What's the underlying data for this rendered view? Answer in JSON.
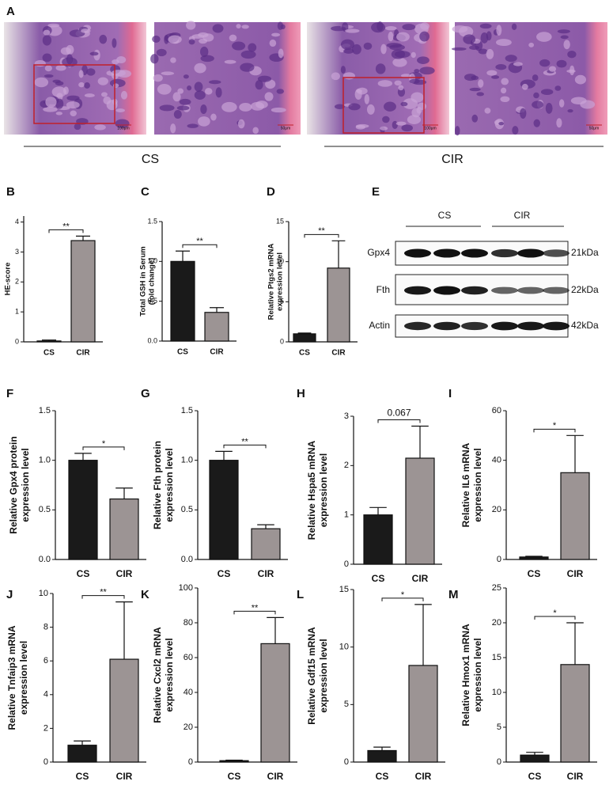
{
  "panel_a": {
    "label": "A",
    "groups": [
      "CS",
      "CIR"
    ],
    "scale_bars": [
      "100μm",
      "50μm",
      "100μm",
      "50μm"
    ]
  },
  "panel_e": {
    "label": "E",
    "groups": [
      "CS",
      "CIR"
    ],
    "proteins": [
      "Gpx4",
      "Fth",
      "Actin"
    ],
    "sizes": [
      "21kDa",
      "22kDa",
      "42kDa"
    ]
  },
  "chart_data": [
    {
      "type": "bar",
      "label": "B",
      "ylabel": [
        "HE-score"
      ],
      "categories": [
        "CS",
        "CIR"
      ],
      "values": [
        0.03,
        3.38
      ],
      "errors": [
        0.03,
        0.15
      ],
      "colors": [
        "#1a1a1a",
        "#9c9494"
      ],
      "ylim": [
        0,
        4.2
      ],
      "yticks": [
        0,
        1,
        2,
        3,
        4
      ],
      "sig": "**"
    },
    {
      "type": "bar",
      "label": "C",
      "ylabel": [
        "Total GSH in Serum",
        "(fold change)"
      ],
      "categories": [
        "CS",
        "CIR"
      ],
      "values": [
        1.0,
        0.36
      ],
      "errors": [
        0.13,
        0.06
      ],
      "colors": [
        "#1a1a1a",
        "#9c9494"
      ],
      "ylim": [
        0,
        1.5
      ],
      "yticks": [
        {
          "value": 0,
          "label": "0.0"
        },
        {
          "value": 0.5,
          "label": "0.5"
        },
        {
          "value": 1,
          "label": "1.0"
        },
        {
          "value": 1.5,
          "label": "1.5"
        }
      ],
      "sig": "**"
    },
    {
      "type": "bar",
      "label": "D",
      "ylabel": [
        "Relative Ptgs2 mRNA",
        "expression level"
      ],
      "categories": [
        "CS",
        "CIR"
      ],
      "values": [
        1.0,
        9.2
      ],
      "errors": [
        0.1,
        3.4
      ],
      "colors": [
        "#1a1a1a",
        "#9c9494"
      ],
      "ylim": [
        0,
        15
      ],
      "yticks": [
        0,
        5,
        10,
        15
      ],
      "sig": "**"
    },
    {
      "type": "bar",
      "label": "F",
      "ylabel": [
        "Relative Gpx4 protein",
        "expression level"
      ],
      "categories": [
        "CS",
        "CIR"
      ],
      "values": [
        1.0,
        0.61
      ],
      "errors": [
        0.07,
        0.11
      ],
      "colors": [
        "#1a1a1a",
        "#9c9494"
      ],
      "ylim": [
        0,
        1.5
      ],
      "yticks": [
        {
          "value": 0,
          "label": "0.0"
        },
        {
          "value": 0.5,
          "label": "0.5"
        },
        {
          "value": 1,
          "label": "1.0"
        },
        {
          "value": 1.5,
          "label": "1.5"
        }
      ],
      "sig": "*"
    },
    {
      "type": "bar",
      "label": "G",
      "ylabel": [
        "Relative Fth protein",
        "expression level"
      ],
      "categories": [
        "CS",
        "CIR"
      ],
      "values": [
        1.0,
        0.31
      ],
      "errors": [
        0.09,
        0.04
      ],
      "colors": [
        "#1a1a1a",
        "#9c9494"
      ],
      "ylim": [
        0,
        1.5
      ],
      "yticks": [
        {
          "value": 0,
          "label": "0.0"
        },
        {
          "value": 0.5,
          "label": "0.5"
        },
        {
          "value": 1,
          "label": "1.0"
        },
        {
          "value": 1.5,
          "label": "1.5"
        }
      ],
      "sig": "**"
    },
    {
      "type": "bar",
      "label": "H",
      "ylabel": [
        "Relative Hspa5 mRNA",
        "expression level"
      ],
      "categories": [
        "CS",
        "CIR"
      ],
      "values": [
        1.0,
        2.15
      ],
      "errors": [
        0.15,
        0.65
      ],
      "colors": [
        "#1a1a1a",
        "#9c9494"
      ],
      "ylim": [
        0,
        3
      ],
      "yticks": [
        0,
        1,
        2,
        3
      ],
      "sig": "0.067"
    },
    {
      "type": "bar",
      "label": "I",
      "ylabel": [
        "Relative IL6 mRNA",
        "expression level"
      ],
      "categories": [
        "CS",
        "CIR"
      ],
      "values": [
        1.0,
        35
      ],
      "errors": [
        0.3,
        15
      ],
      "colors": [
        "#1a1a1a",
        "#9c9494"
      ],
      "ylim": [
        0,
        60
      ],
      "yticks": [
        0,
        20,
        40,
        60
      ],
      "sig": "*"
    },
    {
      "type": "bar",
      "label": "J",
      "ylabel": [
        "Relative Tnfaip3 mRNA",
        "expression level"
      ],
      "categories": [
        "CS",
        "CIR"
      ],
      "values": [
        1.0,
        6.1
      ],
      "errors": [
        0.25,
        3.4
      ],
      "colors": [
        "#1a1a1a",
        "#9c9494"
      ],
      "ylim": [
        0,
        10
      ],
      "yticks": [
        0,
        2,
        4,
        6,
        8,
        10
      ],
      "sig": "**"
    },
    {
      "type": "bar",
      "label": "K",
      "ylabel": [
        "Relative Cxcl2 mRNA",
        "expression level"
      ],
      "categories": [
        "CS",
        "CIR"
      ],
      "values": [
        0.8,
        68
      ],
      "errors": [
        0.3,
        15
      ],
      "colors": [
        "#1a1a1a",
        "#9c9494"
      ],
      "ylim": [
        0,
        100
      ],
      "yticks": [
        0,
        20,
        40,
        60,
        80,
        100
      ],
      "sig": "**"
    },
    {
      "type": "bar",
      "label": "L",
      "ylabel": [
        "Relative Gdf15 mRNA",
        "expression level"
      ],
      "categories": [
        "CS",
        "CIR"
      ],
      "values": [
        1.0,
        8.4
      ],
      "errors": [
        0.3,
        5.3
      ],
      "colors": [
        "#1a1a1a",
        "#9c9494"
      ],
      "ylim": [
        0,
        15
      ],
      "yticks": [
        0,
        5,
        10,
        15
      ],
      "sig": "*"
    },
    {
      "type": "bar",
      "label": "M",
      "ylabel": [
        "Relative Hmox1 mRNA",
        "expression level"
      ],
      "categories": [
        "CS",
        "CIR"
      ],
      "values": [
        1.0,
        14
      ],
      "errors": [
        0.4,
        6
      ],
      "colors": [
        "#1a1a1a",
        "#9c9494"
      ],
      "ylim": [
        0,
        25
      ],
      "yticks": [
        0,
        5,
        10,
        15,
        20,
        25
      ],
      "sig": "*"
    }
  ]
}
